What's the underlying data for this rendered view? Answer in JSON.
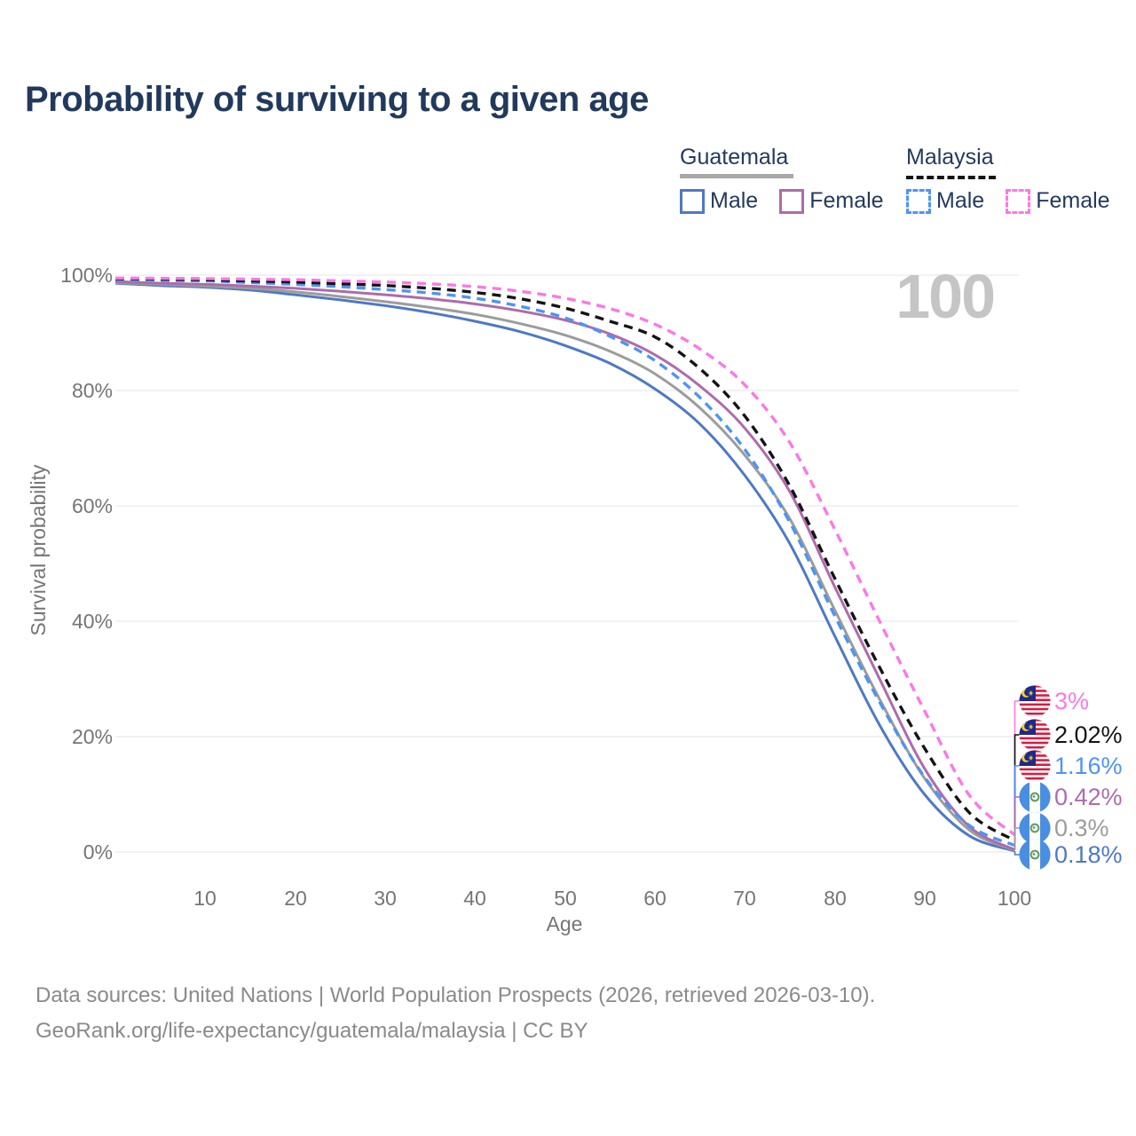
{
  "title": "Probability of surviving to a given age",
  "watermark": "100",
  "legend": {
    "groups": [
      {
        "name": "Guatemala",
        "line_style": "solid",
        "underline_color": "#a8a8a8",
        "items": [
          {
            "label": "Male",
            "color": "#4e79c4"
          },
          {
            "label": "Female",
            "color": "#ae6bac"
          }
        ]
      },
      {
        "name": "Malaysia",
        "line_style": "dashed",
        "underline_color": "#141414",
        "items": [
          {
            "label": "Male",
            "color": "#4e94f2"
          },
          {
            "label": "Female",
            "color": "#fb78e6"
          }
        ]
      }
    ]
  },
  "axes": {
    "y_title": "Survival probability",
    "x_title": "Age",
    "y_ticks": [
      "100%",
      "80%",
      "60%",
      "40%",
      "20%",
      "0%"
    ],
    "x_ticks": [
      "10",
      "20",
      "30",
      "40",
      "50",
      "60",
      "70",
      "80",
      "90",
      "100"
    ]
  },
  "end_labels": [
    {
      "text": "3%",
      "color": "#fb78e6",
      "flag": "malaysia",
      "series": "Malaysia Female"
    },
    {
      "text": "2.02%",
      "color": "#141414",
      "flag": "malaysia",
      "series": "Malaysia Both sexes"
    },
    {
      "text": "1.16%",
      "color": "#4e94f2",
      "flag": "malaysia",
      "series": "Malaysia Male"
    },
    {
      "text": "0.42%",
      "color": "#ae6bac",
      "flag": "guatemala",
      "series": "Guatemala Female"
    },
    {
      "text": "0.3%",
      "color": "#9c9c9c",
      "flag": "guatemala",
      "series": "Guatemala Both sexes"
    },
    {
      "text": "0.18%",
      "color": "#4e79c4",
      "flag": "guatemala",
      "series": "Guatemala Male"
    }
  ],
  "footer": {
    "line1": "Data sources: United Nations | World Population Prospects (2026, retrieved 2026-03-10).",
    "line2": "GeoRank.org/life-expectancy/guatemala/malaysia | CC BY"
  },
  "chart_data": {
    "type": "line",
    "title": "Probability of surviving to a given age",
    "xlabel": "Age",
    "ylabel": "Survival probability",
    "xlim": [
      0,
      100
    ],
    "ylim_percent": [
      0,
      100
    ],
    "grid": "horizontal",
    "x_ages": [
      0,
      5,
      10,
      15,
      20,
      25,
      30,
      35,
      40,
      45,
      50,
      55,
      60,
      65,
      70,
      75,
      80,
      85,
      90,
      95,
      100
    ],
    "series": [
      {
        "name": "Guatemala Male",
        "country": "Guatemala",
        "sex": "Male",
        "color": "#4e79c4",
        "dash": false,
        "values_percent": [
          98.6,
          98.2,
          97.9,
          97.4,
          96.6,
          95.7,
          94.7,
          93.5,
          92.0,
          90.2,
          87.8,
          84.7,
          80.3,
          74.2,
          65.3,
          53.5,
          37.5,
          22.0,
          10.0,
          2.8,
          0.18
        ],
        "end_value_percent": 0.18
      },
      {
        "name": "Guatemala Both sexes",
        "country": "Guatemala",
        "sex": "Both",
        "color": "#9c9c9c",
        "dash": false,
        "values_percent": [
          98.7,
          98.4,
          98.1,
          97.7,
          97.1,
          96.3,
          95.4,
          94.4,
          93.2,
          91.6,
          89.6,
          86.8,
          82.9,
          77.0,
          68.8,
          57.8,
          42.0,
          26.5,
          12.8,
          3.8,
          0.3
        ],
        "end_value_percent": 0.3
      },
      {
        "name": "Guatemala Female",
        "country": "Guatemala",
        "sex": "Female",
        "color": "#ae6bac",
        "dash": false,
        "values_percent": [
          98.9,
          98.6,
          98.4,
          98.1,
          97.7,
          97.2,
          96.6,
          95.9,
          95.0,
          93.8,
          92.2,
          89.8,
          86.2,
          80.8,
          73.5,
          62.5,
          46.0,
          30.0,
          14.5,
          4.4,
          0.42
        ],
        "end_value_percent": 0.42
      },
      {
        "name": "Malaysia Male",
        "country": "Malaysia",
        "sex": "Male",
        "color": "#4e94f2",
        "dash": true,
        "values_percent": [
          99.3,
          99.1,
          99.0,
          98.7,
          98.4,
          98.0,
          97.5,
          96.9,
          96.0,
          94.6,
          92.6,
          89.4,
          85.2,
          78.8,
          69.8,
          57.2,
          41.0,
          26.0,
          13.0,
          4.6,
          1.16
        ],
        "end_value_percent": 1.16
      },
      {
        "name": "Malaysia Both sexes",
        "country": "Malaysia",
        "sex": "Both",
        "color": "#141414",
        "dash": true,
        "values_percent": [
          99.4,
          99.3,
          99.2,
          99.0,
          98.8,
          98.5,
          98.2,
          97.7,
          97.0,
          95.9,
          94.3,
          92.0,
          89.3,
          83.8,
          75.6,
          63.5,
          47.5,
          32.0,
          18.0,
          6.8,
          2.02
        ],
        "end_value_percent": 2.02
      },
      {
        "name": "Malaysia Female",
        "country": "Malaysia",
        "sex": "Female",
        "color": "#fb78e6",
        "dash": true,
        "values_percent": [
          99.5,
          99.45,
          99.4,
          99.3,
          99.2,
          99.0,
          98.8,
          98.5,
          98.0,
          97.2,
          96.0,
          94.2,
          91.5,
          87.2,
          81.0,
          71.0,
          56.0,
          40.0,
          24.5,
          9.8,
          3.0
        ],
        "end_value_percent": 3.0
      }
    ]
  }
}
